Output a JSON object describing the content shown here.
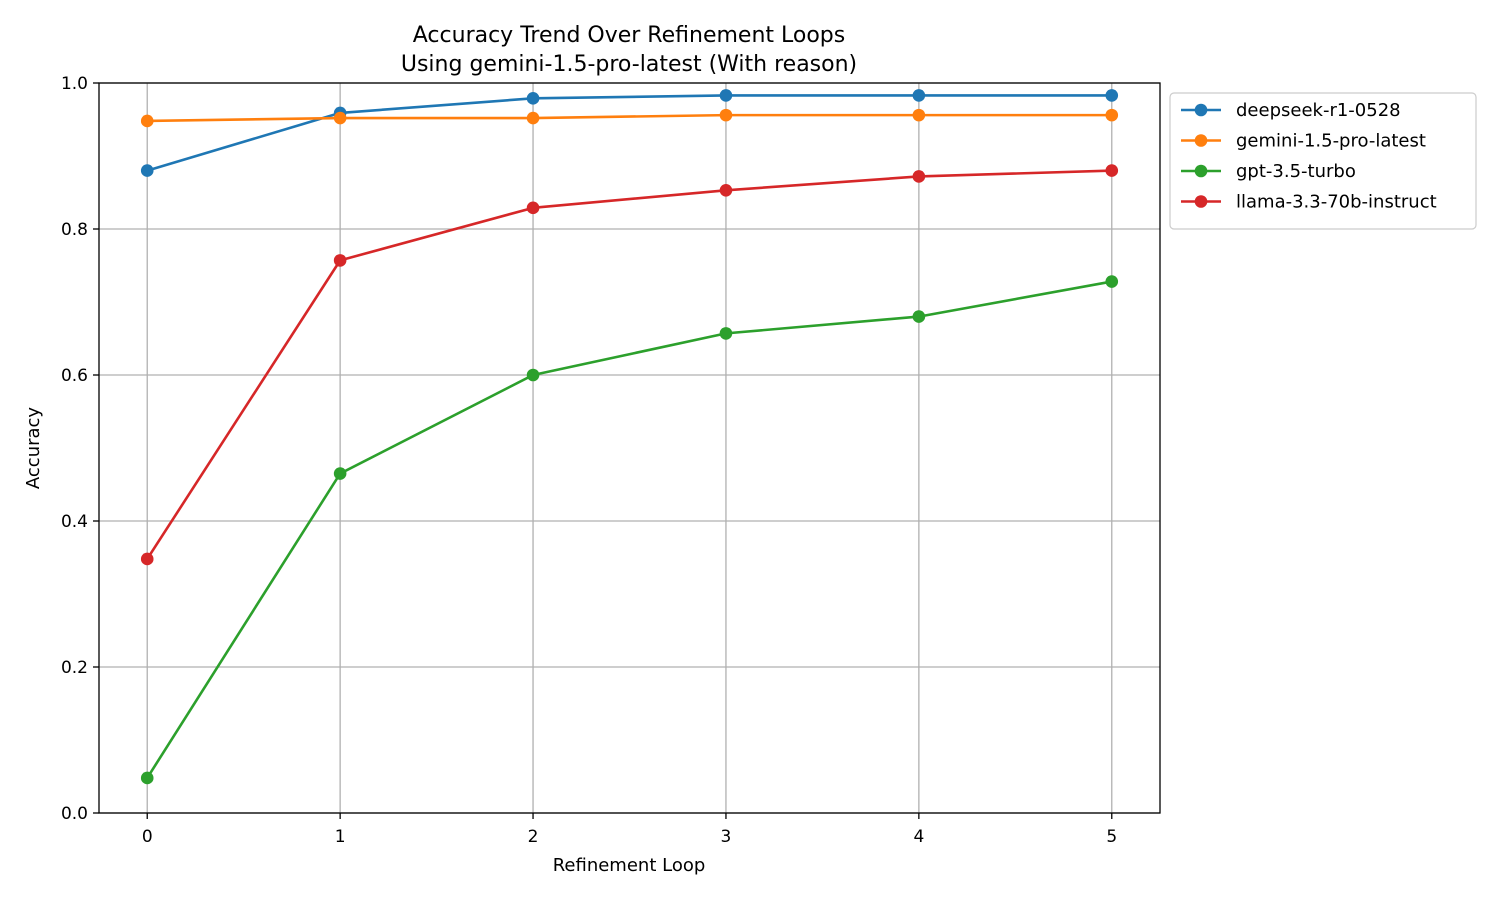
{
  "chart_data": {
    "type": "line",
    "title": "Accuracy Trend Over Refinement Loops",
    "subtitle": "Using gemini-1.5-pro-latest (With reason)",
    "xlabel": "Refinement Loop",
    "ylabel": "Accuracy",
    "x": [
      0,
      1,
      2,
      3,
      4,
      5
    ],
    "xlim": [
      -0.25,
      5.25
    ],
    "ylim": [
      0.0,
      1.0
    ],
    "x_ticks": [
      "0",
      "1",
      "2",
      "3",
      "4",
      "5"
    ],
    "y_ticks": [
      "0.0",
      "0.2",
      "0.4",
      "0.6",
      "0.8",
      "1.0"
    ],
    "grid": true,
    "legend_position": "outside-top-right",
    "series": [
      {
        "name": "deepseek-r1-0528",
        "color": "#1f77b4",
        "values": [
          0.88,
          0.959,
          0.979,
          0.983,
          0.983,
          0.983
        ]
      },
      {
        "name": "gemini-1.5-pro-latest",
        "color": "#ff7f0e",
        "values": [
          0.948,
          0.952,
          0.952,
          0.956,
          0.956,
          0.956
        ]
      },
      {
        "name": "gpt-3.5-turbo",
        "color": "#2ca02c",
        "values": [
          0.048,
          0.465,
          0.6,
          0.657,
          0.68,
          0.728
        ]
      },
      {
        "name": "llama-3.3-70b-instruct",
        "color": "#d62728",
        "values": [
          0.348,
          0.757,
          0.829,
          0.853,
          0.872,
          0.88
        ]
      }
    ]
  }
}
